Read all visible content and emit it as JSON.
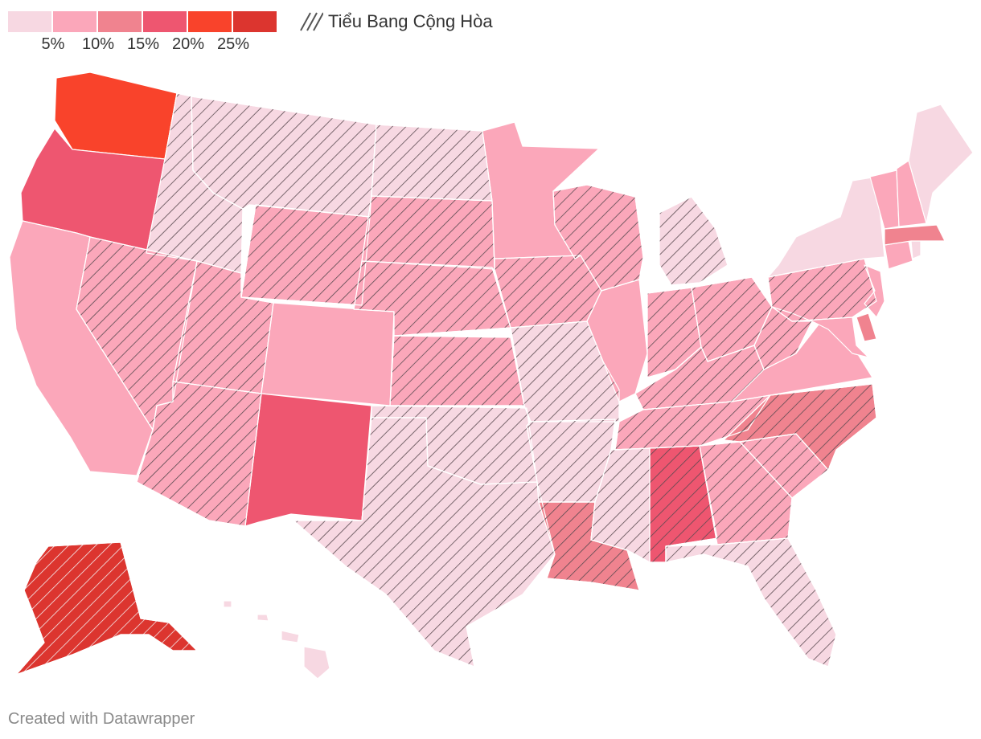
{
  "legend": {
    "colors": [
      "#f7d8e2",
      "#fba7ba",
      "#f0838f",
      "#ee5670",
      "#f9432b",
      "#dc352f"
    ],
    "ticks": [
      "5%",
      "10%",
      "15%",
      "20%",
      "25%"
    ],
    "hatch_label": "Tiểu Bang Cộng Hòa"
  },
  "map_data": {
    "type": "choropleth",
    "region": "United States",
    "states": [
      {
        "code": "WA",
        "bin": 5,
        "republican": false
      },
      {
        "code": "OR",
        "bin": 4,
        "republican": false
      },
      {
        "code": "CA",
        "bin": 2,
        "republican": false
      },
      {
        "code": "ID",
        "bin": 1,
        "republican": true
      },
      {
        "code": "NV",
        "bin": 2,
        "republican": true
      },
      {
        "code": "MT",
        "bin": 1,
        "republican": true
      },
      {
        "code": "WY",
        "bin": 2,
        "republican": true
      },
      {
        "code": "UT",
        "bin": 2,
        "republican": true
      },
      {
        "code": "AZ",
        "bin": 2,
        "republican": true
      },
      {
        "code": "CO",
        "bin": 2,
        "republican": false
      },
      {
        "code": "NM",
        "bin": 4,
        "republican": false
      },
      {
        "code": "ND",
        "bin": 1,
        "republican": true
      },
      {
        "code": "SD",
        "bin": 2,
        "republican": true
      },
      {
        "code": "NE",
        "bin": 2,
        "republican": true
      },
      {
        "code": "KS",
        "bin": 2,
        "republican": true
      },
      {
        "code": "OK",
        "bin": 1,
        "republican": true
      },
      {
        "code": "TX",
        "bin": 1,
        "republican": true
      },
      {
        "code": "MN",
        "bin": 2,
        "republican": false
      },
      {
        "code": "IA",
        "bin": 2,
        "republican": true
      },
      {
        "code": "MO",
        "bin": 1,
        "republican": true
      },
      {
        "code": "AR",
        "bin": 1,
        "republican": true
      },
      {
        "code": "LA",
        "bin": 3,
        "republican": true
      },
      {
        "code": "WI",
        "bin": 2,
        "republican": true
      },
      {
        "code": "IL",
        "bin": 2,
        "republican": false
      },
      {
        "code": "MI",
        "bin": 1,
        "republican": true
      },
      {
        "code": "IN",
        "bin": 2,
        "republican": true
      },
      {
        "code": "OH",
        "bin": 2,
        "republican": true
      },
      {
        "code": "KY",
        "bin": 2,
        "republican": true
      },
      {
        "code": "TN",
        "bin": 2,
        "republican": true
      },
      {
        "code": "MS",
        "bin": 1,
        "republican": true
      },
      {
        "code": "AL",
        "bin": 4,
        "republican": true
      },
      {
        "code": "GA",
        "bin": 2,
        "republican": true
      },
      {
        "code": "FL",
        "bin": 1,
        "republican": true
      },
      {
        "code": "SC",
        "bin": 2,
        "republican": true
      },
      {
        "code": "NC",
        "bin": 3,
        "republican": true
      },
      {
        "code": "VA",
        "bin": 2,
        "republican": false
      },
      {
        "code": "WV",
        "bin": 2,
        "republican": true
      },
      {
        "code": "PA",
        "bin": 2,
        "republican": true
      },
      {
        "code": "NY",
        "bin": 1,
        "republican": false
      },
      {
        "code": "NJ",
        "bin": 2,
        "republican": false
      },
      {
        "code": "DE",
        "bin": 3,
        "republican": false
      },
      {
        "code": "MD",
        "bin": 2,
        "republican": false
      },
      {
        "code": "CT",
        "bin": 2,
        "republican": false
      },
      {
        "code": "RI",
        "bin": 1,
        "republican": false
      },
      {
        "code": "MA",
        "bin": 3,
        "republican": false
      },
      {
        "code": "VT",
        "bin": 2,
        "republican": false
      },
      {
        "code": "NH",
        "bin": 2,
        "republican": false
      },
      {
        "code": "ME",
        "bin": 1,
        "republican": false
      },
      {
        "code": "AK",
        "bin": 6,
        "republican": true
      },
      {
        "code": "HI",
        "bin": 1,
        "republican": false
      }
    ]
  },
  "footer": "Created with Datawrapper"
}
